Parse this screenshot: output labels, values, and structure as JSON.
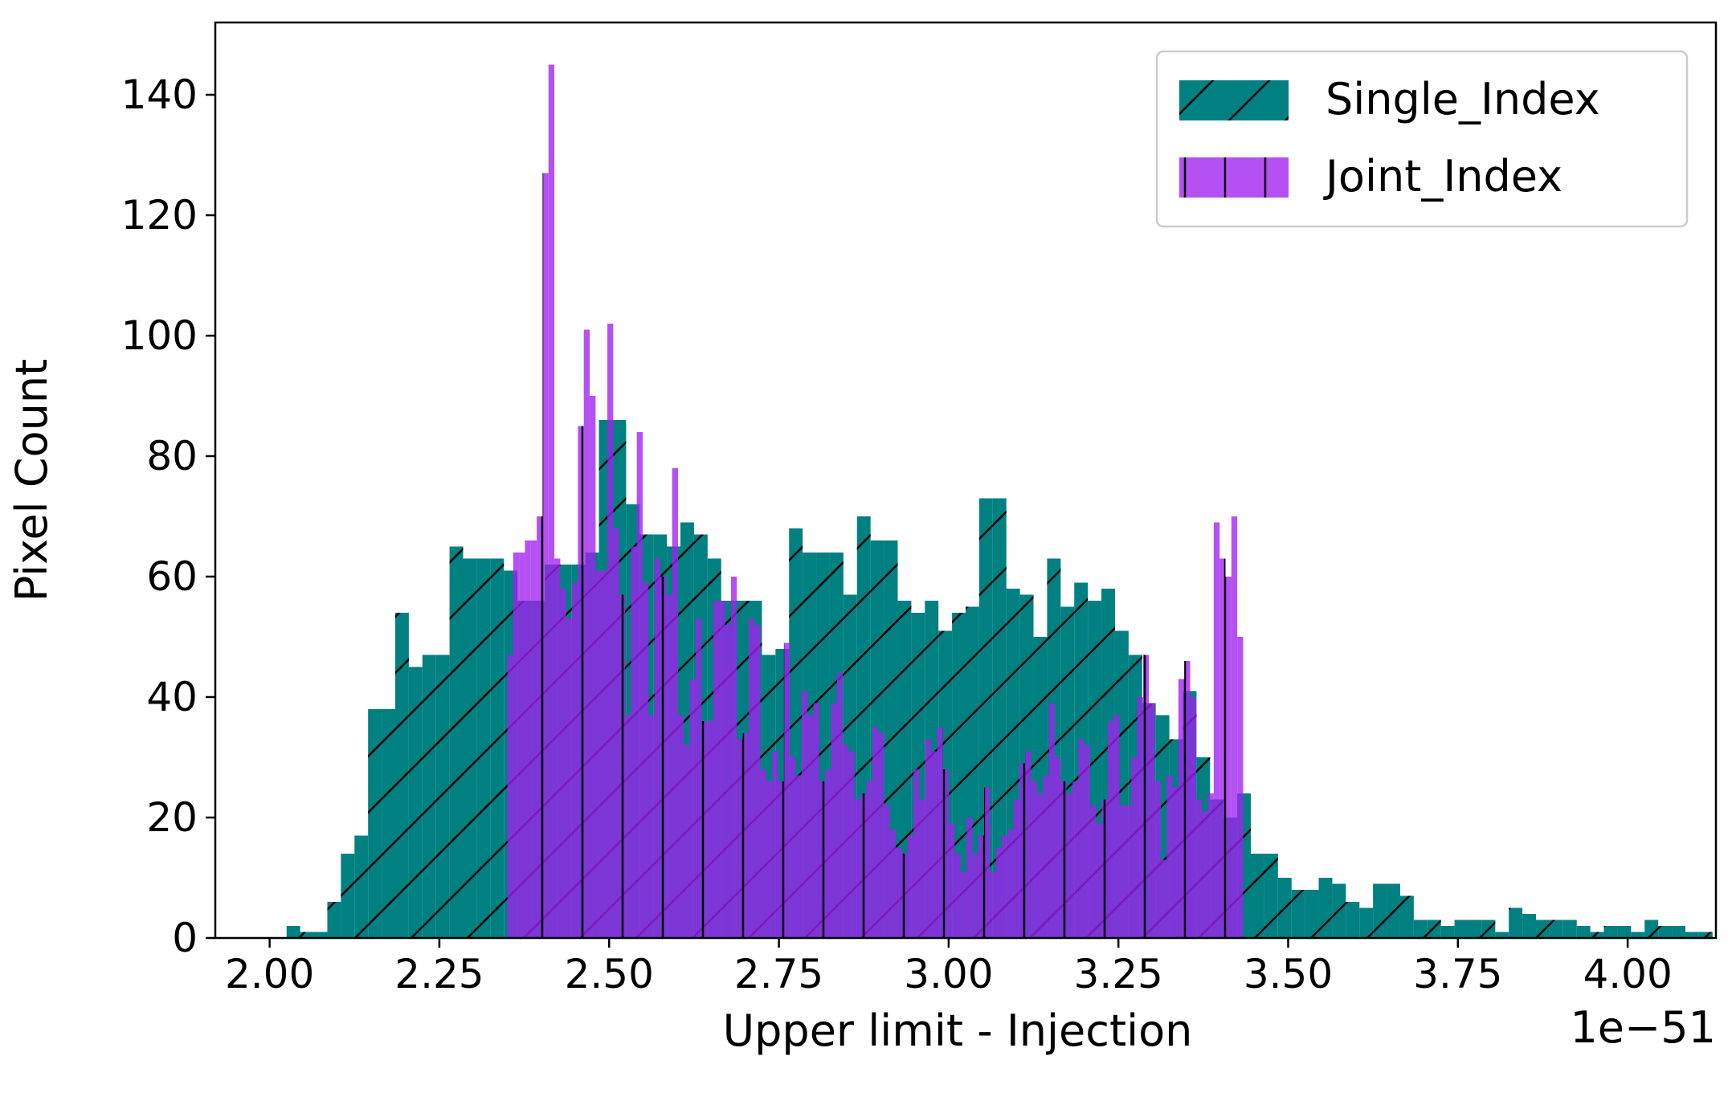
{
  "chart_data": {
    "type": "bar",
    "title": "",
    "xlabel": "Upper limit - Injection",
    "ylabel": "Pixel Count",
    "x_offset_label": "1e−51",
    "xlim": [
      1.92,
      4.13
    ],
    "ylim": [
      0,
      152
    ],
    "xticks": [
      2.0,
      2.25,
      2.5,
      2.75,
      3.0,
      3.25,
      3.5,
      3.75,
      4.0
    ],
    "xtick_labels": [
      "2.00",
      "2.25",
      "2.50",
      "2.75",
      "3.00",
      "3.25",
      "3.50",
      "3.75",
      "4.00"
    ],
    "yticks": [
      0,
      20,
      40,
      60,
      80,
      100,
      120,
      140
    ],
    "ytick_labels": [
      "0",
      "20",
      "40",
      "60",
      "80",
      "100",
      "120",
      "140"
    ],
    "grid": false,
    "legend_position": "top-right",
    "series": [
      {
        "name": "Single_Index",
        "color": "#008080",
        "hatch": "diagonal",
        "bin_start": 2.025,
        "bin_width": 0.02,
        "values": [
          2,
          1,
          1,
          6,
          14,
          17,
          38,
          38,
          54,
          45,
          47,
          47,
          65,
          63,
          63,
          63,
          61,
          56,
          56,
          62,
          62,
          62,
          64,
          86,
          86,
          72,
          67,
          67,
          65,
          69,
          67,
          63,
          56,
          56,
          56,
          47,
          48,
          68,
          64,
          64,
          64,
          57,
          70,
          66,
          66,
          56,
          54,
          56,
          51,
          54,
          55,
          73,
          73,
          58,
          57,
          50,
          63,
          55,
          59,
          56,
          58,
          51,
          47,
          39,
          37,
          33,
          41,
          30,
          23,
          20,
          24,
          14,
          14,
          10,
          8,
          8,
          10,
          9,
          6,
          5,
          9,
          9,
          7,
          3,
          3,
          2,
          3,
          3,
          3,
          1,
          5,
          4,
          3,
          3,
          3,
          2,
          1,
          2,
          2,
          1,
          3,
          2,
          2,
          1,
          1,
          0,
          0,
          0,
          1,
          1,
          1,
          0,
          0,
          1,
          0,
          2,
          1,
          1,
          0,
          1,
          0,
          1,
          2,
          0,
          1,
          1,
          0,
          1,
          0,
          1,
          1,
          1,
          1,
          0,
          1,
          0,
          1,
          0,
          1,
          0,
          0,
          0,
          0,
          0,
          0
        ]
      },
      {
        "name": "Joint_Index",
        "color": "#a020f0",
        "hatch": "vertical",
        "bin_start": 2.35,
        "bin_width": 0.00867,
        "values": [
          47,
          64,
          64,
          66,
          66,
          70,
          127,
          145,
          63,
          58,
          53,
          59,
          85,
          101,
          90,
          61,
          61,
          102,
          68,
          57,
          37,
          65,
          84,
          59,
          37,
          63,
          60,
          57,
          78,
          37,
          32,
          43,
          53,
          36,
          36,
          56,
          56,
          52,
          60,
          33,
          34,
          53,
          52,
          28,
          26,
          31,
          26,
          49,
          30,
          27,
          41,
          37,
          39,
          26,
          28,
          39,
          44,
          32,
          31,
          23,
          24,
          26,
          35,
          34,
          22,
          18,
          15,
          14,
          17,
          28,
          23,
          33,
          31,
          35,
          28,
          19,
          14,
          11,
          20,
          14,
          17,
          25,
          11,
          15,
          17,
          18,
          23,
          29,
          31,
          26,
          24,
          27,
          39,
          30,
          26,
          24,
          26,
          33,
          32,
          22,
          19,
          23,
          36,
          37,
          22,
          22,
          30,
          40,
          47,
          39,
          26,
          13,
          27,
          25,
          43,
          46,
          40,
          23,
          21,
          24,
          69,
          63,
          60,
          70,
          50
        ]
      }
    ]
  }
}
